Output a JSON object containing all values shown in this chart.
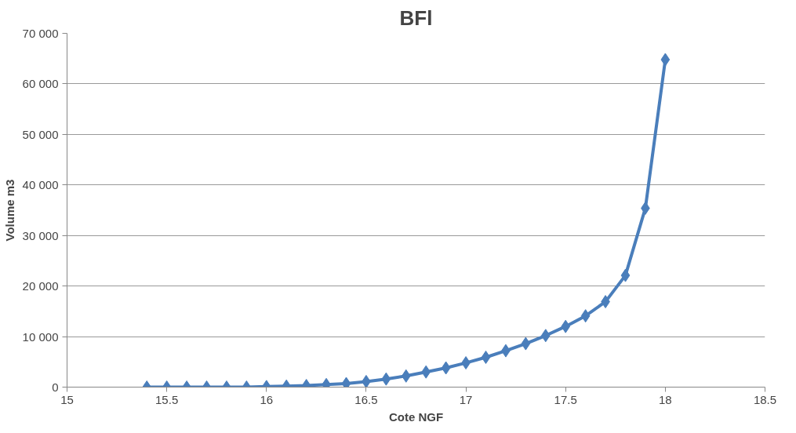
{
  "chart_data": {
    "type": "line",
    "title": "BFl",
    "xlabel": "Cote NGF",
    "ylabel": "Volume m3",
    "x": [
      15.4,
      15.5,
      15.6,
      15.7,
      15.8,
      15.9,
      16.0,
      16.1,
      16.2,
      16.3,
      16.4,
      16.5,
      16.6,
      16.7,
      16.8,
      16.9,
      17.0,
      17.1,
      17.2,
      17.3,
      17.4,
      17.5,
      17.6,
      17.7,
      17.8,
      17.9,
      18.0
    ],
    "series": [
      {
        "color": "#4a7ebb",
        "values": [
          0,
          0,
          0,
          0,
          0,
          0,
          100,
          200,
          300,
          500,
          700,
          1100,
          1600,
          2200,
          3000,
          3800,
          4800,
          5900,
          7200,
          8600,
          10200,
          12000,
          14100,
          16900,
          22100,
          35400,
          64800
        ]
      }
    ],
    "xlim": [
      15,
      18.5
    ],
    "xticks": [
      15,
      15.5,
      16,
      16.5,
      17,
      17.5,
      18,
      18.5
    ],
    "ylim": [
      0,
      70000
    ],
    "yticks": [
      {
        "value": 0,
        "label": "0"
      },
      {
        "value": 10000,
        "label": "10 000"
      },
      {
        "value": 20000,
        "label": "20 000"
      },
      {
        "value": 30000,
        "label": "30 000"
      },
      {
        "value": 40000,
        "label": "40 000"
      },
      {
        "value": 50000,
        "label": "50 000"
      },
      {
        "value": 60000,
        "label": "60 000"
      },
      {
        "value": 70000,
        "label": "70 000"
      }
    ],
    "grid": "y",
    "marker": "diamond",
    "line_style": "solid"
  }
}
